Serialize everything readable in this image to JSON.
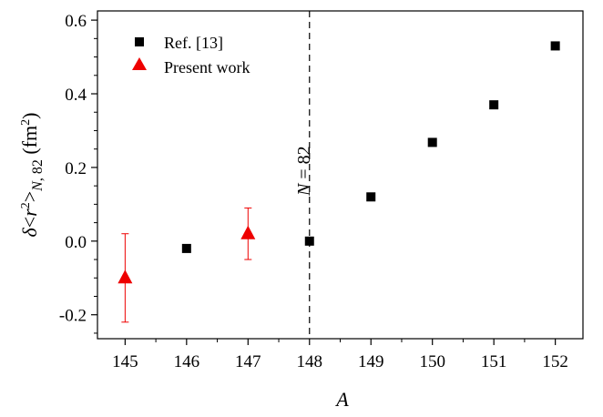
{
  "chart_data": {
    "type": "scatter",
    "title": "",
    "xlabel": "A",
    "ylabel": {
      "delta": "δ",
      "lt": "<",
      "r": "r",
      "sup2": "2",
      "gt": ">",
      "sub_n": "N",
      "sub_rest": ", 82",
      "unit_open": " (fm",
      "unit_sup": "2",
      "unit_close": ")"
    },
    "xlim": [
      144.55,
      152.45
    ],
    "ylim": [
      -0.265,
      0.625
    ],
    "xticks": [
      "145",
      "146",
      "147",
      "148",
      "149",
      "150",
      "151",
      "152"
    ],
    "xtick_values": [
      145,
      146,
      147,
      148,
      149,
      150,
      151,
      152
    ],
    "yticks": [
      "-0.2",
      "0.0",
      "0.2",
      "0.4",
      "0.6"
    ],
    "ytick_values": [
      -0.2,
      0.0,
      0.2,
      0.4,
      0.6
    ],
    "legend_position": "top-left",
    "series": [
      {
        "name": "Ref. [13]",
        "marker": "square",
        "color": "#000000",
        "x": [
          146,
          148,
          149,
          150,
          151,
          152
        ],
        "y": [
          -0.02,
          0.0,
          0.12,
          0.268,
          0.37,
          0.53
        ]
      },
      {
        "name": "Present work",
        "marker": "triangle",
        "color": "#ee0000",
        "x": [
          145,
          147
        ],
        "y": [
          -0.1,
          0.02
        ],
        "yerr_low": [
          -0.22,
          -0.05
        ],
        "yerr_high": [
          0.02,
          0.09
        ]
      }
    ],
    "annotations": [
      {
        "type": "vline",
        "x": 148,
        "style": "dashed",
        "label_var": "N",
        "label_rest": " = 82"
      }
    ]
  }
}
